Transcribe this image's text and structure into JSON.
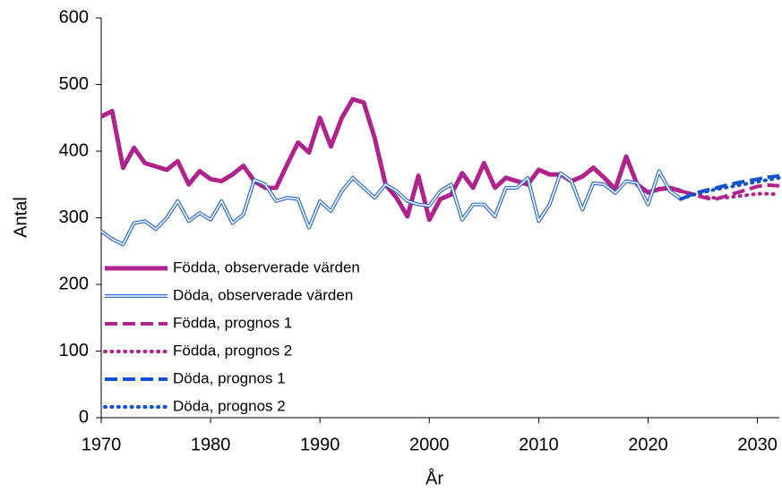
{
  "chart_data": {
    "type": "line",
    "xlabel": "År",
    "ylabel": "Antal",
    "xlim": [
      1970,
      2032
    ],
    "ylim": [
      0,
      600
    ],
    "xticks": [
      1970,
      1980,
      1990,
      2000,
      2010,
      2020,
      2030
    ],
    "yticks": [
      0,
      100,
      200,
      300,
      400,
      500,
      600
    ],
    "grid": false,
    "legend": "lower left",
    "series": [
      {
        "name": "Födda, observerade värden",
        "color": "#b0228c",
        "style": "solid",
        "width": 5,
        "x": [
          1970,
          1971,
          1972,
          1973,
          1974,
          1975,
          1976,
          1977,
          1978,
          1979,
          1980,
          1981,
          1982,
          1983,
          1984,
          1985,
          1986,
          1987,
          1988,
          1989,
          1990,
          1991,
          1992,
          1993,
          1994,
          1995,
          1996,
          1997,
          1998,
          1999,
          2000,
          2001,
          2002,
          2003,
          2004,
          2005,
          2006,
          2007,
          2008,
          2009,
          2010,
          2011,
          2012,
          2013,
          2014,
          2015,
          2016,
          2017,
          2018,
          2019,
          2020,
          2021,
          2022,
          2023
        ],
        "values": [
          452,
          460,
          375,
          405,
          382,
          377,
          372,
          385,
          350,
          370,
          358,
          355,
          365,
          378,
          355,
          345,
          345,
          380,
          413,
          398,
          450,
          407,
          450,
          478,
          473,
          420,
          350,
          330,
          302,
          363,
          297,
          328,
          335,
          367,
          345,
          382,
          345,
          360,
          355,
          350,
          372,
          365,
          365,
          355,
          362,
          375,
          360,
          343,
          392,
          350,
          338,
          343,
          345,
          340
        ]
      },
      {
        "name": "Döda, observerade värden",
        "color": "#2a6ad4",
        "style": "double",
        "width": 4,
        "x": [
          1970,
          1971,
          1972,
          1973,
          1974,
          1975,
          1976,
          1977,
          1978,
          1979,
          1980,
          1981,
          1982,
          1983,
          1984,
          1985,
          1986,
          1987,
          1988,
          1989,
          1990,
          1991,
          1992,
          1993,
          1994,
          1995,
          1996,
          1997,
          1998,
          1999,
          2000,
          2001,
          2002,
          2003,
          2004,
          2005,
          2006,
          2007,
          2008,
          2009,
          2010,
          2011,
          2012,
          2013,
          2014,
          2015,
          2016,
          2017,
          2018,
          2019,
          2020,
          2021,
          2022,
          2023
        ],
        "values": [
          280,
          268,
          260,
          292,
          295,
          283,
          300,
          325,
          295,
          307,
          297,
          325,
          292,
          305,
          357,
          350,
          325,
          330,
          328,
          285,
          325,
          310,
          340,
          360,
          345,
          330,
          350,
          340,
          325,
          320,
          318,
          340,
          350,
          297,
          320,
          320,
          302,
          345,
          345,
          360,
          295,
          320,
          367,
          355,
          312,
          352,
          350,
          337,
          355,
          352,
          320,
          370,
          340,
          328
        ]
      },
      {
        "name": "Födda, prognos 1",
        "color": "#b0228c",
        "style": "dashed",
        "width": 4,
        "x": [
          2023,
          2024,
          2025,
          2026,
          2027,
          2028,
          2029,
          2030,
          2031,
          2032
        ],
        "values": [
          340,
          336,
          331,
          327,
          332,
          337,
          342,
          347,
          349,
          348
        ]
      },
      {
        "name": "Födda, prognos 2",
        "color": "#b0228c",
        "style": "dotted",
        "width": 4,
        "x": [
          2023,
          2024,
          2025,
          2026,
          2027,
          2028,
          2029,
          2030,
          2031,
          2032
        ],
        "values": [
          340,
          336,
          332,
          330,
          330,
          332,
          334,
          336,
          336,
          335
        ]
      },
      {
        "name": "Döda, prognos 1",
        "color": "#1550d0",
        "style": "dashed",
        "width": 4,
        "x": [
          2023,
          2024,
          2025,
          2026,
          2027,
          2028,
          2029,
          2030,
          2031,
          2032
        ],
        "values": [
          328,
          335,
          340,
          344,
          348,
          352,
          355,
          358,
          361,
          363
        ]
      },
      {
        "name": "Döda, prognos 2",
        "color": "#1550d0",
        "style": "dotted",
        "width": 4,
        "x": [
          2023,
          2024,
          2025,
          2026,
          2027,
          2028,
          2029,
          2030,
          2031,
          2032
        ],
        "values": [
          328,
          334,
          338,
          342,
          345,
          348,
          351,
          354,
          357,
          360
        ]
      }
    ]
  }
}
